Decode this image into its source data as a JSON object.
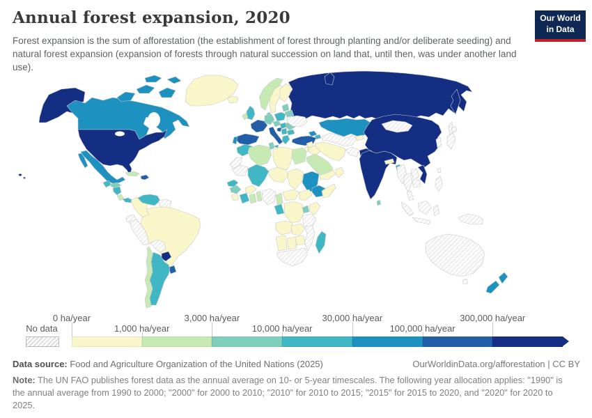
{
  "header": {
    "title": "Annual forest expansion, 2020",
    "subtitle": "Forest expansion is the sum of afforestation (the establishment of forest through planting and/or deliberate seeding) and natural forest expansion (expansion of forests through natural succession on land that, until then, was under another land use).",
    "logo_line1": "Our World",
    "logo_line2": "in Data"
  },
  "legend": {
    "no_data_label": "No data",
    "segments": [
      {
        "tick": "0 ha/year",
        "bin": "bin1"
      },
      {
        "tick": "1,000 ha/year",
        "bin": "bin2"
      },
      {
        "tick": "3,000 ha/year",
        "bin": "bin3"
      },
      {
        "tick": "10,000 ha/year",
        "bin": "bin4"
      },
      {
        "tick": "30,000 ha/year",
        "bin": "bin5"
      },
      {
        "tick": "100,000 ha/year",
        "bin": "bin6"
      },
      {
        "tick": "300,000 ha/year",
        "bin": "bin7"
      }
    ]
  },
  "footer": {
    "source_label": "Data source:",
    "source_value": " Food and Agriculture Organization of the United Nations (2025)",
    "link": "OurWorldinData.org/afforestation | CC BY",
    "note_label": "Note:",
    "note_value": " The UN FAO publishes forest data as the annual average on 10- or 5-year timescales. The following year allocation applies: \"1990\" is the annual average from 1990 to 2000; \"2000\" for 2000 to 2010; \"2010\" for 2010 to 2015; \"2015\" for 2015 to 2020, and \"2020\" for 2020 to 2025."
  },
  "chart_data": {
    "type": "choropleth-map",
    "title": "Annual forest expansion, 2020",
    "unit": "ha/year",
    "legend_position": "bottom",
    "bins": [
      {
        "id": "bin1",
        "range": "0-1,000 ha/year",
        "color": "#f9f7ca"
      },
      {
        "id": "bin2",
        "range": "1,000-3,000 ha/year",
        "color": "#c7e9b4"
      },
      {
        "id": "bin3",
        "range": "3,000-10,000 ha/year",
        "color": "#7fcdbb"
      },
      {
        "id": "bin4",
        "range": "10,000-30,000 ha/year",
        "color": "#41b6c4"
      },
      {
        "id": "bin5",
        "range": "30,000-100,000 ha/year",
        "color": "#1d91c0"
      },
      {
        "id": "bin6",
        "range": "100,000-300,000 ha/year",
        "color": "#225ea8"
      },
      {
        "id": "bin7",
        "range": "300,000+ ha/year",
        "color": "#132e82"
      },
      {
        "id": "no-data",
        "range": "No data",
        "color": "hatch"
      }
    ],
    "regions": {
      "united-states": "bin7",
      "canada": "bin5",
      "greenland": "bin1",
      "iceland": "bin1",
      "mexico": "bin5",
      "guatemala": "bin4",
      "honduras": "bin3",
      "nicaragua": "bin4",
      "costa-rica": "bin2",
      "panama": "bin4",
      "cuba": "bin2",
      "dominican-republic": "bin6",
      "venezuela": "bin4",
      "colombia": "bin1",
      "guyana": "no-data",
      "ecuador": "no-data",
      "peru": "no-data",
      "brazil": "bin1",
      "bolivia": "no-data",
      "paraguay": "bin7",
      "uruguay": "bin6",
      "argentina": "bin4",
      "chile": "bin2",
      "norway": "bin2",
      "sweden": "bin1",
      "finland": "bin1",
      "denmark": "bin3",
      "united-kingdom": "bin4",
      "ireland": "bin2",
      "france": "bin6",
      "spain": "bin6",
      "portugal": "bin5",
      "germany": "bin3",
      "italy": "bin6",
      "sicily": "bin4",
      "poland": "bin4",
      "czechia": "bin3",
      "hungary": "bin4",
      "croatia": "bin6",
      "serbia": "bin4",
      "romania": "bin3",
      "bulgaria": "bin4",
      "greece": "bin4",
      "baltic-states": "bin3",
      "belarus": "bin3",
      "ukraine": "no-data",
      "russia": "bin7",
      "kazakhstan": "bin5",
      "uzbekistan": "no-data",
      "kyrgyzstan": "bin1",
      "georgia": "bin5",
      "azerbaijan": "bin4",
      "turkey": "bin6",
      "syria": "bin1",
      "iraq": "bin1",
      "iran": "bin1",
      "afghanistan": "no-data",
      "pakistan": "bin7",
      "saudi-arabia": "bin2",
      "yemen": "bin1",
      "oman": "bin1",
      "jordan": "bin1",
      "morocco": "bin4",
      "western-sahara": "no-data",
      "mauritania": "no-data",
      "algeria": "bin2",
      "tunisia": "bin3",
      "libya": "bin1",
      "egypt": "bin2",
      "mali": "bin4",
      "niger": "bin1",
      "chad": "bin1",
      "sudan": "bin5",
      "ethiopia": "bin5",
      "somalia": "bin1",
      "senegal": "bin4",
      "guinea": "bin3",
      "sierra-leone": "bin1",
      "ivory-coast": "bin4",
      "ghana": "bin2",
      "burkina-faso": "bin1",
      "benin": "bin2",
      "nigeria": "no-data",
      "cameroon": "bin2",
      "central-african-republic": "bin1",
      "south-sudan": "bin1",
      "gabon": "bin4",
      "dr-congo": "bin1",
      "uganda": "bin3",
      "kenya": "bin1",
      "tanzania": "no-data",
      "angola": "bin1",
      "zambia": "bin1",
      "mozambique": "no-data",
      "zimbabwe": "bin1",
      "namibia": "bin1",
      "botswana": "bin1",
      "south-africa": "no-data",
      "madagascar": "bin4",
      "india": "bin7",
      "sri-lanka": "bin3",
      "nepal": "bin1",
      "bangladesh": "bin4",
      "china": "bin7",
      "mongolia": "no-data",
      "south-korea": "no-data",
      "japan": "no-data",
      "taiwan": "no-data",
      "sakhalin": "no-data",
      "myanmar": "no-data",
      "thailand": "no-data",
      "laos": "no-data",
      "vietnam": "bin7",
      "cambodia": "no-data",
      "malaysia": "no-data",
      "indonesia": "no-data",
      "philippines": "no-data",
      "papua-new-guinea": "no-data",
      "australia": "no-data",
      "new-zealand": "bin5"
    }
  }
}
